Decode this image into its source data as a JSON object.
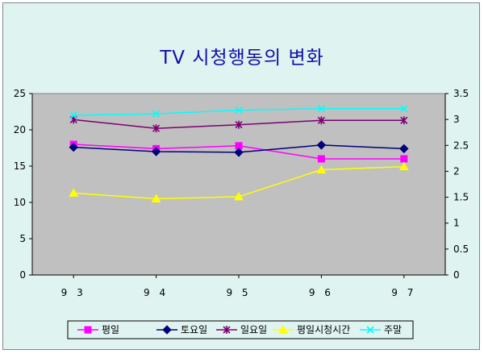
{
  "chart_data": {
    "type": "line",
    "title": "TV 시청행동의 변화",
    "categories": [
      "9 3",
      "9 4",
      "9 5",
      "9 6",
      "9 7"
    ],
    "ylim": [
      0,
      25
    ],
    "y2lim": [
      0,
      3.5
    ],
    "yticks": [
      "0",
      "5",
      "10",
      "15",
      "20",
      "25"
    ],
    "y2ticks": [
      "0",
      "0.5",
      "1",
      "1.5",
      "2",
      "2.5",
      "3",
      "3.5"
    ],
    "grid": false,
    "legend_position": "bottom",
    "series": [
      {
        "name": "평일",
        "axis": "left",
        "color": "#ff00ff",
        "marker": "square",
        "values": [
          18.0,
          17.4,
          17.8,
          16.0,
          16.0
        ]
      },
      {
        "name": "토요일",
        "axis": "left",
        "color": "#00007a",
        "marker": "diamond",
        "values": [
          17.6,
          17.0,
          16.9,
          17.9,
          17.4
        ]
      },
      {
        "name": "일요일",
        "axis": "left",
        "color": "#7a0070",
        "marker": "star",
        "values": [
          21.4,
          20.2,
          20.7,
          21.3,
          21.3
        ]
      },
      {
        "name": "평일시청시간",
        "axis": "right",
        "color": "#ffff00",
        "marker": "triangle",
        "values": [
          1.58,
          1.47,
          1.51,
          2.03,
          2.09
        ]
      },
      {
        "name": "주말",
        "axis": "right",
        "color": "#00ffff",
        "marker": "x",
        "values": [
          3.08,
          3.11,
          3.18,
          3.21,
          3.21
        ]
      }
    ]
  }
}
